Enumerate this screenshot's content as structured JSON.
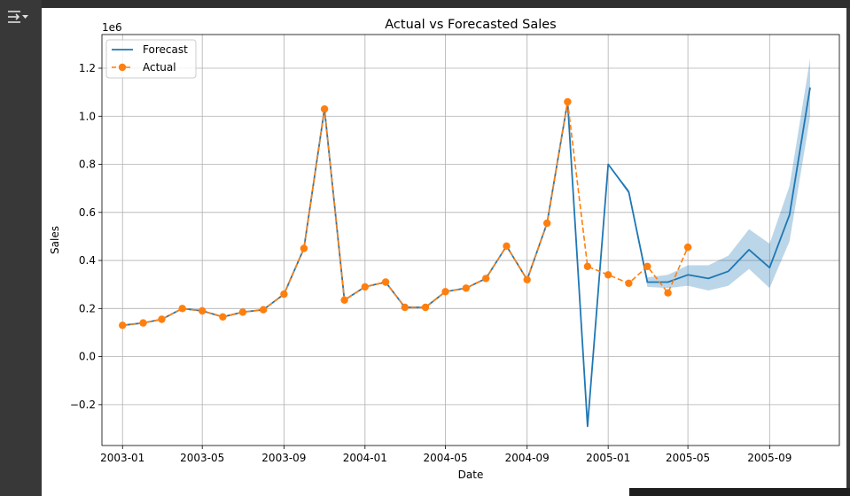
{
  "ui": {
    "panel_toggle_icon": "collapse-panel-icon"
  },
  "colors": {
    "forecast": "#1f77b4",
    "actual": "#ff7f0e",
    "band": "#1f77b4",
    "grid": "#b0b0b0"
  },
  "chart_data": {
    "type": "line",
    "title": "Actual vs Forecasted Sales",
    "xlabel": "Date",
    "ylabel": "Sales",
    "y_offset_label": "1e6",
    "xlim": [
      "2002-12-01",
      "2005-12-15"
    ],
    "ylim": [
      -0.37,
      1.34
    ],
    "x_ticks": [
      {
        "date": "2003-01-01",
        "label": "2003-01"
      },
      {
        "date": "2003-05-01",
        "label": "2003-05"
      },
      {
        "date": "2003-09-01",
        "label": "2003-09"
      },
      {
        "date": "2004-01-01",
        "label": "2004-01"
      },
      {
        "date": "2004-05-01",
        "label": "2004-05"
      },
      {
        "date": "2004-09-01",
        "label": "2004-09"
      },
      {
        "date": "2005-01-01",
        "label": "2005-01"
      },
      {
        "date": "2005-05-01",
        "label": "2005-05"
      },
      {
        "date": "2005-09-01",
        "label": "2005-09"
      }
    ],
    "y_ticks": [
      {
        "value": -0.2,
        "label": "−0.2"
      },
      {
        "value": 0.0,
        "label": "0.0"
      },
      {
        "value": 0.2,
        "label": "0.2"
      },
      {
        "value": 0.4,
        "label": "0.4"
      },
      {
        "value": 0.6,
        "label": "0.6"
      },
      {
        "value": 0.8,
        "label": "0.8"
      },
      {
        "value": 1.0,
        "label": "1.0"
      },
      {
        "value": 1.2,
        "label": "1.2"
      }
    ],
    "grid": true,
    "legend_position": "upper-left",
    "series": [
      {
        "name": "Forecast",
        "style": "solid",
        "x": [
          "2003-01-01",
          "2003-02-01",
          "2003-03-01",
          "2003-04-01",
          "2003-05-01",
          "2003-06-01",
          "2003-07-01",
          "2003-08-01",
          "2003-09-01",
          "2003-10-01",
          "2003-11-01",
          "2003-12-01",
          "2004-01-01",
          "2004-02-01",
          "2004-03-01",
          "2004-04-01",
          "2004-05-01",
          "2004-06-01",
          "2004-07-01",
          "2004-08-01",
          "2004-09-01",
          "2004-10-01",
          "2004-11-01",
          "2004-12-01",
          "2005-01-01",
          "2005-02-01",
          "2005-03-01",
          "2005-04-01",
          "2005-05-01",
          "2005-06-01",
          "2005-07-01",
          "2005-08-01",
          "2005-09-01",
          "2005-10-01",
          "2005-11-01"
        ],
        "values": [
          0.13,
          0.14,
          0.155,
          0.2,
          0.19,
          0.165,
          0.185,
          0.195,
          0.26,
          0.45,
          1.03,
          0.235,
          0.29,
          0.31,
          0.205,
          0.205,
          0.27,
          0.285,
          0.325,
          0.46,
          0.32,
          0.555,
          1.06,
          -0.29,
          0.8,
          0.685,
          0.31,
          0.31,
          0.34,
          0.325,
          0.355,
          0.445,
          0.37,
          0.59,
          1.12
        ],
        "lower": [
          0.13,
          0.14,
          0.155,
          0.2,
          0.19,
          0.165,
          0.185,
          0.195,
          0.26,
          0.45,
          1.03,
          0.235,
          0.29,
          0.31,
          0.205,
          0.205,
          0.27,
          0.285,
          0.325,
          0.46,
          0.32,
          0.555,
          1.06,
          -0.29,
          0.8,
          0.675,
          0.29,
          0.285,
          0.295,
          0.275,
          0.295,
          0.365,
          0.285,
          0.48,
          1.0
        ],
        "upper": [
          0.13,
          0.14,
          0.155,
          0.2,
          0.19,
          0.165,
          0.185,
          0.195,
          0.26,
          0.45,
          1.03,
          0.235,
          0.29,
          0.31,
          0.205,
          0.205,
          0.27,
          0.285,
          0.325,
          0.46,
          0.32,
          0.555,
          1.06,
          -0.29,
          0.8,
          0.695,
          0.33,
          0.34,
          0.38,
          0.38,
          0.42,
          0.53,
          0.47,
          0.71,
          1.24
        ]
      },
      {
        "name": "Actual",
        "style": "dashed-markers",
        "x": [
          "2003-01-01",
          "2003-02-01",
          "2003-03-01",
          "2003-04-01",
          "2003-05-01",
          "2003-06-01",
          "2003-07-01",
          "2003-08-01",
          "2003-09-01",
          "2003-10-01",
          "2003-11-01",
          "2003-12-01",
          "2004-01-01",
          "2004-02-01",
          "2004-03-01",
          "2004-04-01",
          "2004-05-01",
          "2004-06-01",
          "2004-07-01",
          "2004-08-01",
          "2004-09-01",
          "2004-10-01",
          "2004-11-01",
          "2004-12-01",
          "2005-01-01",
          "2005-02-01",
          "2005-03-01",
          "2005-04-01",
          "2005-05-01"
        ],
        "values": [
          0.13,
          0.14,
          0.155,
          0.2,
          0.19,
          0.165,
          0.185,
          0.195,
          0.26,
          0.45,
          1.03,
          0.235,
          0.29,
          0.31,
          0.205,
          0.205,
          0.27,
          0.285,
          0.325,
          0.46,
          0.32,
          0.555,
          1.06,
          0.375,
          0.34,
          0.305,
          0.375,
          0.265,
          0.455
        ]
      }
    ]
  }
}
